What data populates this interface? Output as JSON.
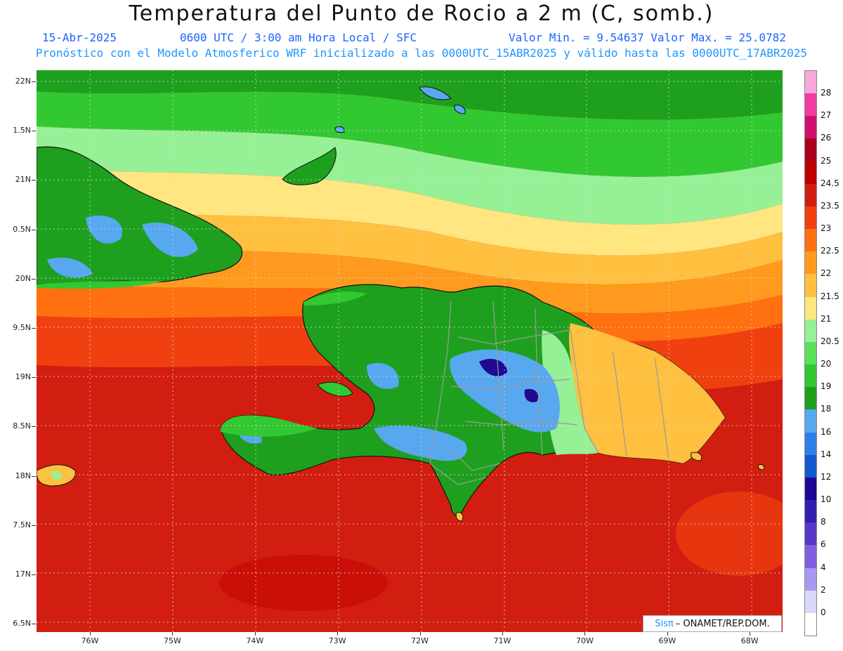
{
  "header": {
    "title": "Temperatura del Punto de Rocio a 2 m (C, somb.)",
    "date": "15-Abr-2025",
    "time": "0600 UTC / 3:00 am Hora Local / SFC",
    "minmax": "Valor Min. = 9.54637  Valor Max. = 25.0782",
    "model_line": "Pronóstico con el Modelo Atmosferico WRF inicializado a las 0000UTC_15ABR2025 y válido hasta las  0000UTC_17ABR2025"
  },
  "axes": {
    "lat_labels": [
      "22N",
      "1.5N",
      "21N",
      "0.5N",
      "20N",
      "9.5N",
      "19N",
      "8.5N",
      "18N",
      "7.5N",
      "17N",
      "6.5N"
    ],
    "lon_labels": [
      "76W",
      "75W",
      "74W",
      "73W",
      "72W",
      "71W",
      "70W",
      "69W",
      "68W"
    ],
    "lat_range": [
      16.4,
      22.1
    ],
    "lon_range": [
      -76.7,
      -67.7
    ]
  },
  "legend": {
    "labels": [
      "0",
      "2",
      "4",
      "6",
      "8",
      "10",
      "12",
      "14",
      "16",
      "18",
      "19",
      "20",
      "20.5",
      "21",
      "21.5",
      "22",
      "22.5",
      "23",
      "23.5",
      "24.5",
      "25",
      "26",
      "27",
      "28"
    ],
    "colors": [
      "#ffffff",
      "#d8d8f8",
      "#a898f0",
      "#8060e0",
      "#5838c8",
      "#3020b0",
      "#200890",
      "#1458d0",
      "#2c80e8",
      "#58a8f0",
      "#1ea01e",
      "#32c832",
      "#5ae05a",
      "#96f096",
      "#ffe680",
      "#ffc040",
      "#ff9a1e",
      "#ff7010",
      "#f04010",
      "#d21e10",
      "#c00000",
      "#a8001e",
      "#d0106e",
      "#f03ca0",
      "#f8a8d8"
    ]
  },
  "credit": {
    "brand": "Sisπ",
    "text": "– ONAMET/REP.DOM."
  },
  "field_colors": {
    "sea_south": "#d21e10",
    "sea_band_orange": "#ff7010",
    "band_yellow": "#ffe680",
    "band_lightgreen": "#96f096",
    "band_green": "#32c832",
    "land_green": "#1ea01e",
    "land_blue": "#58a8f0",
    "land_orange": "#ffc040",
    "border_gray": "#9a9a9a",
    "coast_black": "#111111"
  }
}
